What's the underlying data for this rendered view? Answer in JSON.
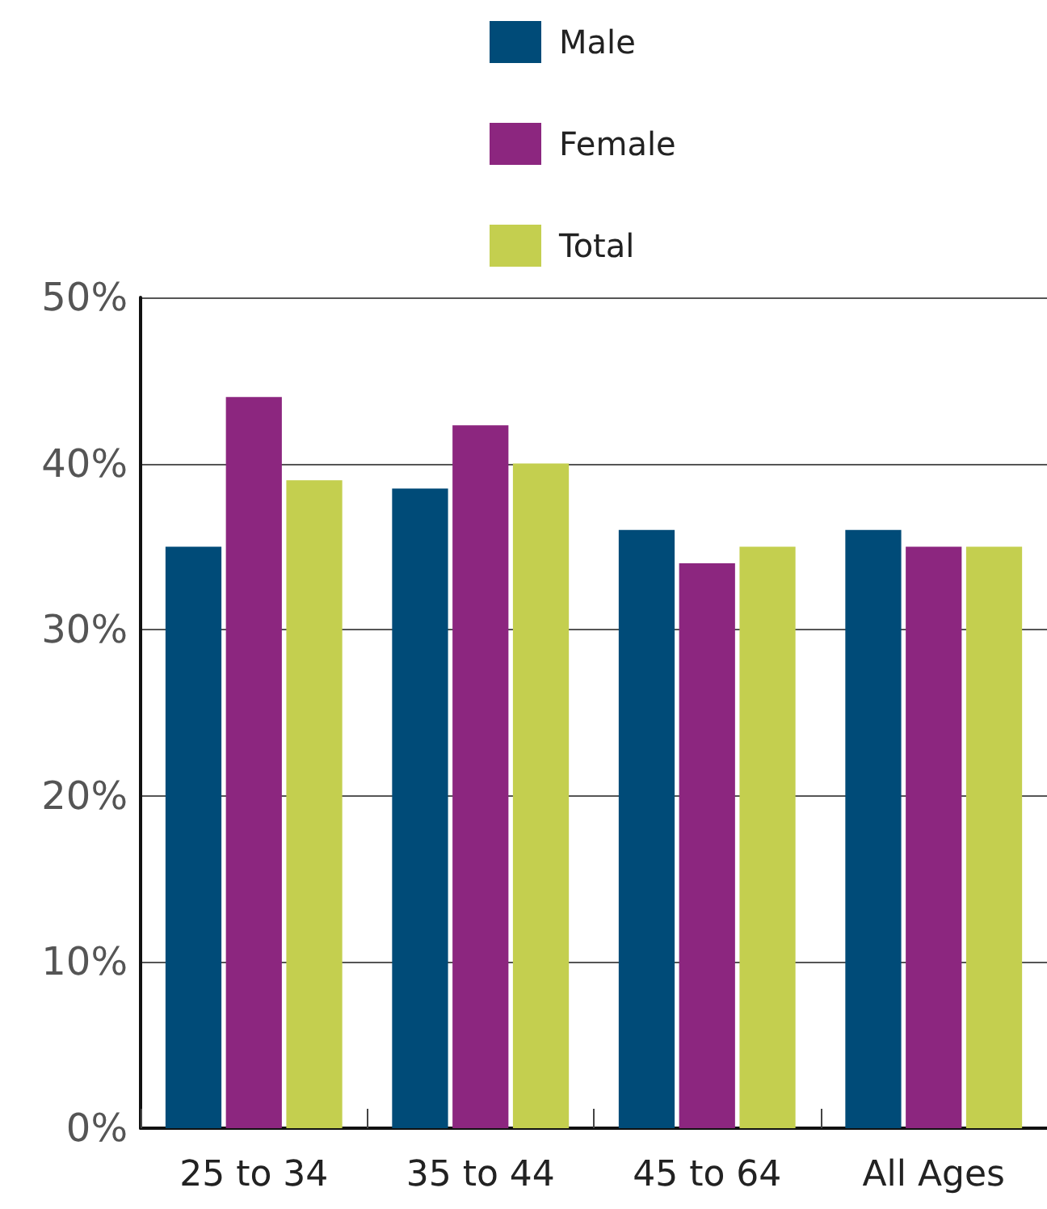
{
  "chart_data": {
    "type": "bar",
    "categories": [
      "25 to 34",
      "35 to 44",
      "45 to 64",
      "All Ages"
    ],
    "series": [
      {
        "name": "Male",
        "color": "#004b78",
        "values": [
          35,
          38.5,
          36,
          36
        ]
      },
      {
        "name": "Female",
        "color": "#8c267f",
        "values": [
          44,
          42.3,
          34,
          35
        ]
      },
      {
        "name": "Total",
        "color": "#c4cf4f",
        "values": [
          39,
          40,
          35,
          35
        ]
      }
    ],
    "ylim": [
      0,
      50
    ],
    "yticks": [
      {
        "value": 0,
        "label": "0%"
      },
      {
        "value": 10,
        "label": "10%"
      },
      {
        "value": 20,
        "label": "20%"
      },
      {
        "value": 30,
        "label": "30%"
      },
      {
        "value": 40,
        "label": "40%"
      },
      {
        "value": 50,
        "label": "50%"
      }
    ],
    "grid": "y",
    "legend": "top"
  }
}
